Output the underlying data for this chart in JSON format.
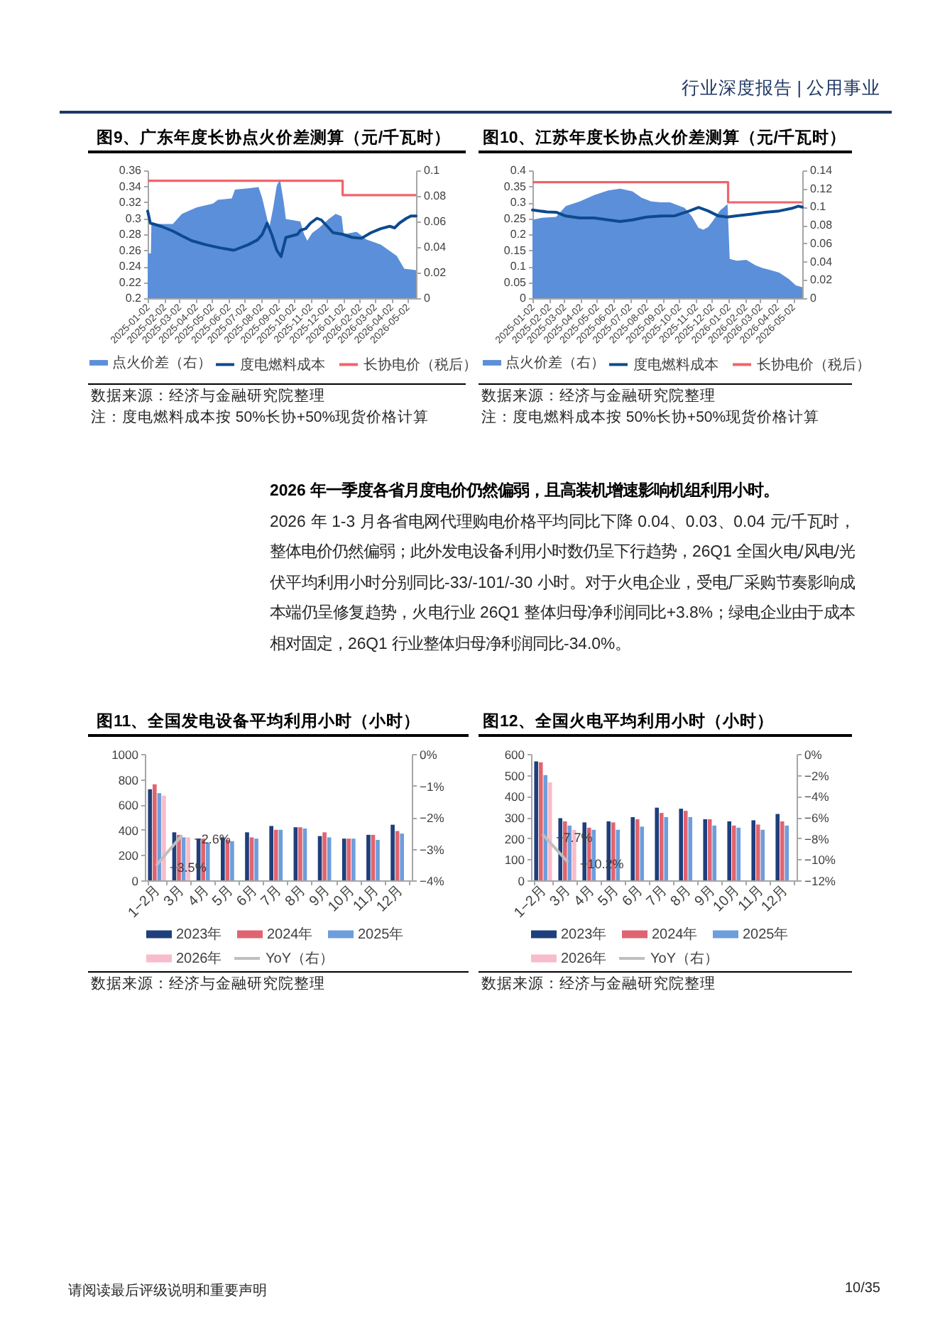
{
  "chart_data": [
    {
      "type": "other",
      "annotations": [
        "行业深度报告 | 公用事业"
      ]
    },
    {
      "type": "line",
      "title": "图9、广东年度长协点火价差测算（元/千瓦时）",
      "series": [
        {
          "name": "点火价差（右）",
          "type": "area",
          "axis": "y2",
          "color": "#5b8fd9",
          "x": [
            "2025-01-02",
            "2025-01-08",
            "2025-01-09",
            "2025-02-18",
            "2025-03-07",
            "2025-04-03",
            "2025-05-04",
            "2025-05-13",
            "2025-06-08",
            "2025-06-14",
            "2025-07-09",
            "2025-07-28",
            "2025-08-04",
            "2025-08-17",
            "2025-08-24",
            "2025-08-31",
            "2025-09-06",
            "2025-09-13",
            "2025-09-17",
            "2025-10-14",
            "2025-10-21",
            "2025-10-27",
            "2025-11-05",
            "2025-11-18",
            "2025-12-06",
            "2025-12-19",
            "2025-12-30",
            "2026-01-03",
            "2026-01-27",
            "2026-02-14",
            "2026-03-13",
            "2026-03-30",
            "2026-04-12",
            "2026-04-26",
            "2026-05-18"
          ],
          "values": [
            0.035,
            0.035,
            0.058,
            0.058,
            0.066,
            0.071,
            0.074,
            0.077,
            0.078,
            0.085,
            0.086,
            0.087,
            0.078,
            0.055,
            0.07,
            0.088,
            0.093,
            0.075,
            0.062,
            0.06,
            0.05,
            0.045,
            0.051,
            0.055,
            0.062,
            0.066,
            0.064,
            0.05,
            0.052,
            0.046,
            0.042,
            0.037,
            0.033,
            0.023,
            0.022
          ]
        },
        {
          "name": "度电燃料成本",
          "type": "line",
          "color": "#0d4a8e",
          "x": [
            "2025-01-02",
            "2025-01-07",
            "2025-01-27",
            "2025-02-18",
            "2025-03-07",
            "2025-03-25",
            "2025-04-20",
            "2025-05-17",
            "2025-06-12",
            "2025-07-09",
            "2025-07-26",
            "2025-08-04",
            "2025-08-13",
            "2025-08-22",
            "2025-08-31",
            "2025-09-08",
            "2025-09-17",
            "2025-10-09",
            "2025-10-14",
            "2025-10-24",
            "2025-11-02",
            "2025-11-14",
            "2025-11-22",
            "2025-12-06",
            "2025-12-14",
            "2026-01-01",
            "2026-01-19",
            "2026-02-05",
            "2026-02-23",
            "2026-03-13",
            "2026-03-30",
            "2026-04-08",
            "2026-04-17",
            "2026-04-30",
            "2026-05-09",
            "2026-05-18"
          ],
          "values": [
            0.309,
            0.294,
            0.29,
            0.284,
            0.278,
            0.272,
            0.267,
            0.263,
            0.26,
            0.267,
            0.273,
            0.28,
            0.294,
            0.279,
            0.26,
            0.252,
            0.276,
            0.28,
            0.285,
            0.287,
            0.294,
            0.3,
            0.298,
            0.288,
            0.282,
            0.28,
            0.276,
            0.275,
            0.282,
            0.287,
            0.29,
            0.288,
            0.294,
            0.3,
            0.303,
            0.303
          ]
        },
        {
          "name": "长协电价（税后）",
          "type": "step",
          "color": "#f0646c",
          "x": [
            "2025-01-02",
            "2026-01-01",
            "2026-05-18"
          ],
          "values": [
            0.347,
            0.329,
            0.329
          ]
        }
      ],
      "xlim": [
        "2025-01-02",
        "2026-05-18"
      ],
      "xticks": [
        "2025-01-02",
        "2025-02-02",
        "2025-03-02",
        "2025-04-02",
        "2025-05-02",
        "2025-06-02",
        "2025-07-02",
        "2025-08-02",
        "2025-09-02",
        "2025-10-02",
        "2025-11-02",
        "2025-12-02",
        "2026-01-02",
        "2026-02-02",
        "2026-03-02",
        "2026-04-02",
        "2026-05-02"
      ],
      "ylim": [
        0.2,
        0.36
      ],
      "yticks": [
        0.2,
        0.22,
        0.24,
        0.26,
        0.28,
        0.3,
        0.32,
        0.34,
        0.36
      ],
      "y2lim": [
        0,
        0.1
      ],
      "y2ticks": [
        0,
        0.02,
        0.04,
        0.06,
        0.08,
        0.1
      ],
      "legend": "bottom",
      "annotations": [
        "数据来源：经济与金融研究院整理",
        "注：度电燃料成本按 50%长协+50%现货价格计算"
      ]
    },
    {
      "type": "line",
      "title": "图10、江苏年度长协点火价差测算（元/千瓦时）",
      "series": [
        {
          "name": "点火价差（右）",
          "type": "area",
          "axis": "y2",
          "color": "#5b8fd9",
          "x": [
            "2025-01-02",
            "2025-01-20",
            "2025-02-15",
            "2025-03-05",
            "2025-03-31",
            "2025-04-27",
            "2025-05-23",
            "2025-06-14",
            "2025-07-07",
            "2025-07-24",
            "2025-08-11",
            "2025-08-29",
            "2025-09-15",
            "2025-10-12",
            "2025-10-25",
            "2025-11-07",
            "2025-11-16",
            "2025-11-25",
            "2025-12-04",
            "2025-12-17",
            "2025-12-31",
            "2026-01-04",
            "2026-01-17",
            "2026-02-04",
            "2026-02-21",
            "2026-03-06",
            "2026-03-20",
            "2026-04-06",
            "2026-04-24",
            "2026-05-07",
            "2026-05-19"
          ],
          "values": [
            0.086,
            0.088,
            0.089,
            0.101,
            0.106,
            0.113,
            0.118,
            0.12,
            0.117,
            0.11,
            0.106,
            0.105,
            0.105,
            0.099,
            0.09,
            0.077,
            0.075,
            0.078,
            0.085,
            0.096,
            0.103,
            0.043,
            0.041,
            0.042,
            0.036,
            0.033,
            0.031,
            0.028,
            0.021,
            0.014,
            0.012
          ]
        },
        {
          "name": "度电燃料成本",
          "type": "line",
          "color": "#0d4a8e",
          "x": [
            "2025-01-02",
            "2025-01-29",
            "2025-02-15",
            "2025-03-05",
            "2025-03-31",
            "2025-04-27",
            "2025-05-23",
            "2025-06-14",
            "2025-07-07",
            "2025-08-02",
            "2025-08-29",
            "2025-09-24",
            "2025-10-21",
            "2025-11-07",
            "2025-11-25",
            "2025-12-13",
            "2025-12-30",
            "2026-01-17",
            "2026-02-12",
            "2026-03-11",
            "2026-04-06",
            "2026-04-29",
            "2026-05-12",
            "2026-05-19"
          ],
          "values": [
            0.276,
            0.27,
            0.269,
            0.257,
            0.251,
            0.251,
            0.245,
            0.24,
            0.245,
            0.254,
            0.257,
            0.258,
            0.273,
            0.284,
            0.273,
            0.258,
            0.254,
            0.258,
            0.263,
            0.269,
            0.273,
            0.281,
            0.288,
            0.285
          ]
        },
        {
          "name": "长协电价（税后）",
          "type": "step",
          "color": "#f0646c",
          "x": [
            "2025-01-02",
            "2026-01-01",
            "2026-05-19"
          ],
          "values": [
            0.363,
            0.3,
            0.3
          ]
        }
      ],
      "xlim": [
        "2025-01-02",
        "2026-05-19"
      ],
      "xticks": [
        "2025-01-02",
        "2025-02-02",
        "2025-03-02",
        "2025-04-02",
        "2025-05-02",
        "2025-06-02",
        "2025-07-02",
        "2025-08-02",
        "2025-09-02",
        "2025-10-02",
        "2025-11-02",
        "2025-12-02",
        "2026-01-02",
        "2026-02-02",
        "2026-03-02",
        "2026-04-02",
        "2026-05-02"
      ],
      "ylim": [
        0,
        0.4
      ],
      "yticks": [
        0,
        0.05,
        0.1,
        0.15,
        0.2,
        0.25,
        0.3,
        0.35,
        0.4
      ],
      "y2lim": [
        0,
        0.14
      ],
      "y2ticks": [
        0,
        0.02,
        0.04,
        0.06,
        0.08,
        0.1,
        0.12,
        0.14
      ],
      "legend": "bottom",
      "annotations": [
        "数据来源：经济与金融研究院整理",
        "注：度电燃料成本按 50%长协+50%现货价格计算"
      ]
    },
    {
      "type": "other",
      "title": "2026 年一季度各省月度电价仍然偏弱，且高装机增速影响机组利用小时。",
      "annotations": [
        "2026 年 1-3 月各省电网代理购电价格平均同比下降 0.04、0.03、0.04 元/千瓦时，整体电价仍然偏弱；此外发电设备利用小时数仍呈下行趋势，26Q1 全国火电/风电/光伏平均利用小时分别同比-33/-101/-30 小时。对于火电企业，受电厂采购节奏影响成本端仍呈修复趋势，火电行业 26Q1 整体归母净利润同比+3.8%；绿电企业由于成本相对固定，26Q1 行业整体归母净利润同比-34.0%。"
      ]
    },
    {
      "type": "bar",
      "title": "图11、全国发电设备平均利用小时（小时）",
      "categories": [
        "1−2月",
        "3月",
        "4月",
        "5月",
        "6月",
        "7月",
        "8月",
        "9月",
        "10月",
        "11月",
        "12月"
      ],
      "series": [
        {
          "name": "2023年",
          "color": "#1f3e7c",
          "values": [
            720,
            380,
            330,
            340,
            380,
            430,
            420,
            350,
            330,
            360,
            440
          ]
        },
        {
          "name": "2024年",
          "color": "#e06470",
          "values": [
            760,
            360,
            330,
            320,
            340,
            400,
            420,
            380,
            330,
            360,
            390
          ]
        },
        {
          "name": "2025年",
          "color": "#6d9edb",
          "values": [
            690,
            340,
            300,
            310,
            330,
            400,
            410,
            340,
            330,
            320,
            370
          ]
        },
        {
          "name": "2026年",
          "color": "#f8bccb",
          "values": [
            670,
            340,
            null,
            null,
            null,
            null,
            null,
            null,
            null,
            null,
            null
          ]
        },
        {
          "name": "YoY（右）",
          "type": "line",
          "axis": "y2",
          "color": "#bfbfbf",
          "values": [
            -3.5,
            -2.6,
            null,
            null,
            null,
            null,
            null,
            null,
            null,
            null,
            null
          ],
          "value_labels": [
            "−3.5%",
            "−2.6%",
            null,
            null,
            null,
            null,
            null,
            null,
            null,
            null,
            null
          ]
        }
      ],
      "ylim": [
        0,
        1000
      ],
      "yticks": [
        0,
        200,
        400,
        600,
        800,
        1000
      ],
      "y2lim": [
        -4,
        0
      ],
      "y2ticks": [
        {
          "value": 0,
          "label": "0%"
        },
        {
          "value": -1,
          "label": "−1%"
        },
        {
          "value": -2,
          "label": "−2%"
        },
        {
          "value": -3,
          "label": "−3%"
        },
        {
          "value": -4,
          "label": "−4%"
        }
      ],
      "legend": "bottom",
      "annotations": [
        "数据来源：经济与金融研究院整理"
      ]
    },
    {
      "type": "bar",
      "title": "图12、全国火电平均利用小时（小时）",
      "categories": [
        "1−2月",
        "3月",
        "4月",
        "5月",
        "6月",
        "7月",
        "8月",
        "9月",
        "10月",
        "11月",
        "12月"
      ],
      "series": [
        {
          "name": "2023年",
          "color": "#1f3e7c",
          "values": [
            565,
            295,
            275,
            280,
            300,
            345,
            340,
            290,
            280,
            285,
            315
          ]
        },
        {
          "name": "2024年",
          "color": "#e06470",
          "values": [
            560,
            280,
            250,
            275,
            290,
            320,
            330,
            290,
            260,
            265,
            280
          ]
        },
        {
          "name": "2025年",
          "color": "#6d9edb",
          "values": [
            500,
            260,
            240,
            240,
            255,
            300,
            300,
            260,
            250,
            240,
            260
          ]
        },
        {
          "name": "2026年",
          "color": "#f8bccb",
          "values": [
            465,
            240,
            null,
            null,
            null,
            null,
            null,
            null,
            null,
            null,
            null
          ]
        },
        {
          "name": "YoY（右）",
          "type": "line",
          "axis": "y2",
          "color": "#bfbfbf",
          "values": [
            -7.7,
            -10.2,
            null,
            null,
            null,
            null,
            null,
            null,
            null,
            null,
            null
          ],
          "value_labels": [
            "−7.7%",
            "−10.2%",
            null,
            null,
            null,
            null,
            null,
            null,
            null,
            null,
            null
          ]
        }
      ],
      "ylim": [
        0,
        600
      ],
      "yticks": [
        0,
        100,
        200,
        300,
        400,
        500,
        600
      ],
      "y2lim": [
        -12,
        0
      ],
      "y2ticks": [
        {
          "value": 0,
          "label": "0%"
        },
        {
          "value": -2,
          "label": "−2%"
        },
        {
          "value": -4,
          "label": "−4%"
        },
        {
          "value": -6,
          "label": "−6%"
        },
        {
          "value": -8,
          "label": "−8%"
        },
        {
          "value": -10,
          "label": "−10%"
        },
        {
          "value": -12,
          "label": "−12%"
        }
      ],
      "legend": "bottom",
      "annotations": [
        "数据来源：经济与金融研究院整理"
      ]
    },
    {
      "type": "other",
      "annotations": [
        "请阅读最后评级说明和重要声明",
        "10/35"
      ]
    }
  ]
}
